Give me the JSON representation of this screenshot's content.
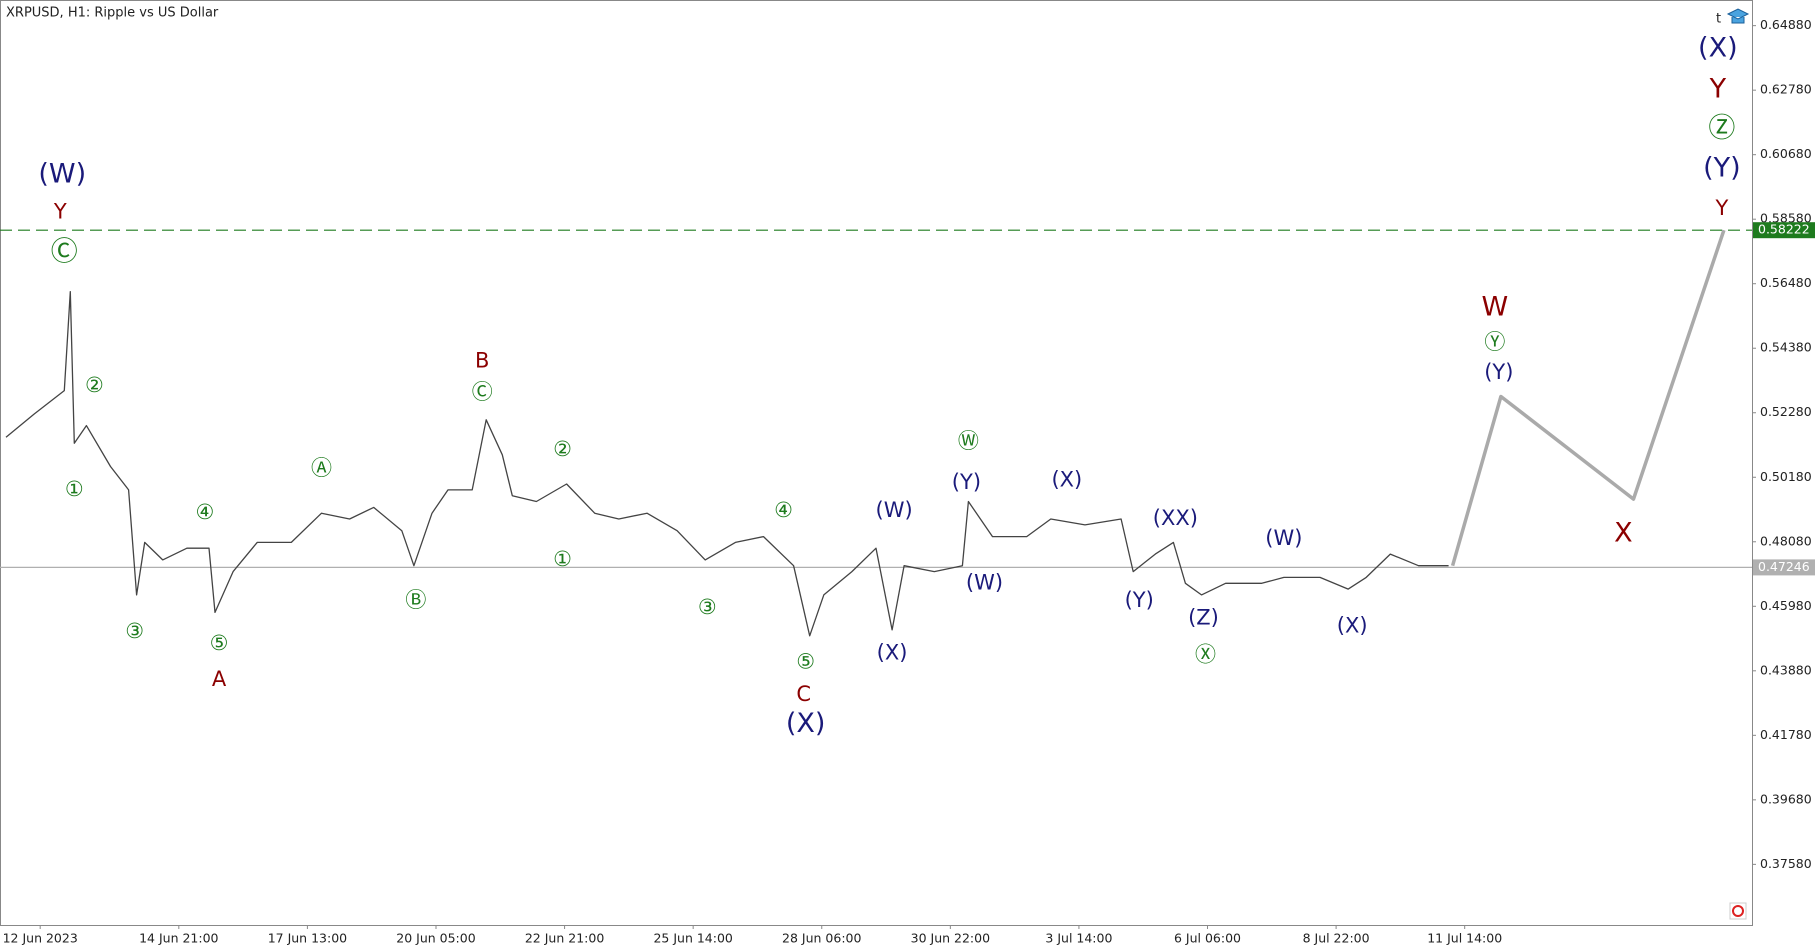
{
  "chart_data": {
    "type": "line",
    "title": "XRPUSD, H1:  Ripple vs US Dollar",
    "xlim": [
      -20,
      852
    ],
    "ylim": [
      0.35606,
      0.65715
    ],
    "xticks": [
      {
        "value": 0,
        "label": "12 Jun 2023"
      },
      {
        "value": 69,
        "label": "14 Jun 21:00"
      },
      {
        "value": 133,
        "label": "17 Jun 13:00"
      },
      {
        "value": 197,
        "label": "20 Jun 05:00"
      },
      {
        "value": 261,
        "label": "22 Jun 21:00"
      },
      {
        "value": 325,
        "label": "25 Jun 14:00"
      },
      {
        "value": 389,
        "label": "28 Jun 06:00"
      },
      {
        "value": 453,
        "label": "30 Jun 22:00"
      },
      {
        "value": 517,
        "label": "3 Jul 14:00"
      },
      {
        "value": 581,
        "label": "6 Jul 06:00"
      },
      {
        "value": 645,
        "label": "8 Jul 22:00"
      },
      {
        "value": 709,
        "label": "11 Jul 14:00"
      }
    ],
    "yticks": [
      {
        "value": 0.6488,
        "label": "0.64880"
      },
      {
        "value": 0.6278,
        "label": "0.62780"
      },
      {
        "value": 0.6068,
        "label": "0.60680"
      },
      {
        "value": 0.5858,
        "label": "0.58580"
      },
      {
        "value": 0.5648,
        "label": "0.56480"
      },
      {
        "value": 0.5438,
        "label": "0.54380"
      },
      {
        "value": 0.5228,
        "label": "0.52280"
      },
      {
        "value": 0.5018,
        "label": "0.50180"
      },
      {
        "value": 0.4808,
        "label": "0.48080"
      },
      {
        "value": 0.4598,
        "label": "0.45980"
      },
      {
        "value": 0.4388,
        "label": "0.43880"
      },
      {
        "value": 0.4178,
        "label": "0.41780"
      },
      {
        "value": 0.3968,
        "label": "0.39680"
      },
      {
        "value": 0.3758,
        "label": "0.37580"
      }
    ],
    "series": [
      {
        "color": "#444444",
        "width": 1.3,
        "x": [
          -17,
          -3,
          12,
          15,
          17,
          23,
          35,
          44,
          48,
          52,
          61,
          73,
          84,
          87,
          96,
          108,
          125,
          140,
          154,
          166,
          180,
          186,
          195,
          203,
          215,
          222,
          230,
          235,
          247,
          262,
          276,
          288,
          302,
          317,
          331,
          346,
          360,
          375,
          383,
          390,
          404,
          416,
          424,
          430,
          445,
          459,
          462,
          474,
          491,
          503,
          520,
          538,
          544,
          555,
          564,
          570,
          578,
          590,
          608,
          619,
          637,
          651,
          660,
          672,
          686,
          701
        ],
        "values": [
          0.5148,
          0.5224,
          0.53,
          0.5622,
          0.5129,
          0.5186,
          0.5053,
          0.4977,
          0.4635,
          0.4806,
          0.4749,
          0.4787,
          0.4787,
          0.4578,
          0.4711,
          0.4806,
          0.4806,
          0.4901,
          0.4882,
          0.492,
          0.4844,
          0.473,
          0.4901,
          0.4977,
          0.4977,
          0.5205,
          0.5091,
          0.4958,
          0.4939,
          0.4996,
          0.4901,
          0.4882,
          0.4901,
          0.4844,
          0.4749,
          0.4806,
          0.4825,
          0.473,
          0.4502,
          0.4635,
          0.4711,
          0.4787,
          0.4521,
          0.473,
          0.4711,
          0.473,
          0.4939,
          0.4825,
          0.4825,
          0.4882,
          0.4863,
          0.4882,
          0.4711,
          0.4768,
          0.4806,
          0.4673,
          0.4635,
          0.4673,
          0.4673,
          0.4692,
          0.4692,
          0.4654,
          0.4692,
          0.4768,
          0.473,
          0.473
        ]
      },
      {
        "color": "#aaaaaa",
        "width": 3.5,
        "x": [
          703,
          727,
          793,
          838
        ],
        "values": [
          0.473,
          0.5281,
          0.4947,
          0.58222
        ]
      }
    ],
    "hlines": [
      {
        "value": 0.58222,
        "color": "#1e7b1e",
        "dashed": true
      },
      {
        "value": 0.47246,
        "color": "#b0b0b0",
        "dashed": false
      }
    ],
    "annotations": [
      {
        "text": "(W)",
        "x": 11,
        "y": 0.6002,
        "color": "#1a1a7a",
        "large": true
      },
      {
        "text": "Y",
        "x": 10,
        "y": 0.588,
        "color": "#8b0000",
        "large": false
      },
      {
        "text": "Ⓒ",
        "x": 12,
        "y": 0.5748,
        "color": "#1e7b1e",
        "large": true
      },
      {
        "text": "②",
        "x": 27,
        "y": 0.5315,
        "color": "#1e7b1e",
        "large": false
      },
      {
        "text": "①",
        "x": 17,
        "y": 0.4977,
        "color": "#1e7b1e",
        "large": false
      },
      {
        "text": "③",
        "x": 47,
        "y": 0.4514,
        "color": "#1e7b1e",
        "large": false
      },
      {
        "text": "④",
        "x": 82,
        "y": 0.4901,
        "color": "#1e7b1e",
        "large": false
      },
      {
        "text": "⑤",
        "x": 89,
        "y": 0.4476,
        "color": "#1e7b1e",
        "large": false
      },
      {
        "text": "A",
        "x": 89,
        "y": 0.4358,
        "color": "#8b0000",
        "large": false
      },
      {
        "text": "Ⓐ",
        "x": 140,
        "y": 0.5045,
        "color": "#1e7b1e",
        "large": false
      },
      {
        "text": "Ⓑ",
        "x": 187,
        "y": 0.4616,
        "color": "#1e7b1e",
        "large": false
      },
      {
        "text": "B",
        "x": 220,
        "y": 0.5395,
        "color": "#8b0000",
        "large": false
      },
      {
        "text": "Ⓒ",
        "x": 220,
        "y": 0.5292,
        "color": "#1e7b1e",
        "large": false
      },
      {
        "text": "②",
        "x": 260,
        "y": 0.5106,
        "color": "#1e7b1e",
        "large": false
      },
      {
        "text": "①",
        "x": 260,
        "y": 0.4749,
        "color": "#1e7b1e",
        "large": false
      },
      {
        "text": "③",
        "x": 332,
        "y": 0.4593,
        "color": "#1e7b1e",
        "large": false
      },
      {
        "text": "④",
        "x": 370,
        "y": 0.4908,
        "color": "#1e7b1e",
        "large": false
      },
      {
        "text": "⑤",
        "x": 381,
        "y": 0.4415,
        "color": "#1e7b1e",
        "large": false
      },
      {
        "text": "C",
        "x": 380,
        "y": 0.4309,
        "color": "#8b0000",
        "large": false
      },
      {
        "text": "(X)",
        "x": 381,
        "y": 0.4214,
        "color": "#1a1a7a",
        "large": true
      },
      {
        "text": "(W)",
        "x": 425,
        "y": 0.4908,
        "color": "#1a1a7a",
        "large": false
      },
      {
        "text": "(X)",
        "x": 424,
        "y": 0.4445,
        "color": "#1a1a7a",
        "large": false
      },
      {
        "text": "Ⓦ",
        "x": 462,
        "y": 0.5132,
        "color": "#1e7b1e",
        "large": false
      },
      {
        "text": "(Y)",
        "x": 461,
        "y": 0.5,
        "color": "#1a1a7a",
        "large": false
      },
      {
        "text": "(W)",
        "x": 470,
        "y": 0.4673,
        "color": "#1a1a7a",
        "large": false
      },
      {
        "text": "(X)",
        "x": 511,
        "y": 0.5007,
        "color": "#1a1a7a",
        "large": false
      },
      {
        "text": "(XX)",
        "x": 565,
        "y": 0.4882,
        "color": "#1a1a7a",
        "large": false
      },
      {
        "text": "(Y)",
        "x": 547,
        "y": 0.4616,
        "color": "#1a1a7a",
        "large": false
      },
      {
        "text": "(Z)",
        "x": 579,
        "y": 0.4559,
        "color": "#1a1a7a",
        "large": false
      },
      {
        "text": "Ⓧ",
        "x": 580,
        "y": 0.4438,
        "color": "#1e7b1e",
        "large": false
      },
      {
        "text": "(W)",
        "x": 619,
        "y": 0.4817,
        "color": "#1a1a7a",
        "large": false
      },
      {
        "text": "(X)",
        "x": 653,
        "y": 0.4533,
        "color": "#1a1a7a",
        "large": false
      },
      {
        "text": "W",
        "x": 724,
        "y": 0.5569,
        "color": "#8b0000",
        "large": true
      },
      {
        "text": "Ⓨ",
        "x": 724,
        "y": 0.5455,
        "color": "#1e7b1e",
        "large": false
      },
      {
        "text": "(Y)",
        "x": 726,
        "y": 0.5357,
        "color": "#1a1a7a",
        "large": false
      },
      {
        "text": "X",
        "x": 788,
        "y": 0.4833,
        "color": "#8b0000",
        "large": true
      },
      {
        "text": "(X)",
        "x": 835,
        "y": 0.6412,
        "color": "#1a1a7a",
        "large": true
      },
      {
        "text": "Y",
        "x": 835,
        "y": 0.6279,
        "color": "#8b0000",
        "large": true
      },
      {
        "text": "Ⓩ",
        "x": 837,
        "y": 0.615,
        "color": "#1e7b1e",
        "large": true
      },
      {
        "text": "(Y)",
        "x": 837,
        "y": 0.6021,
        "color": "#1a1a7a",
        "large": true
      },
      {
        "text": "Y",
        "x": 837,
        "y": 0.5892,
        "color": "#8b0000",
        "large": false
      }
    ]
  }
}
